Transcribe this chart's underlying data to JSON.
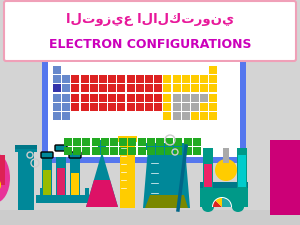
{
  "bg_color": "#d4d4d4",
  "title_arabic": "التوزيع الالكتروني",
  "title_english": "ELECTRON CONFIGURATIONS",
  "title_arabic_color": "#e8189a",
  "title_english_color": "#cc00bb",
  "title_box_edge": "#f0a0b8",
  "periodic_border_color": "#5577ee",
  "periodic_bg": "#ffffff",
  "pt": {
    "blue": "#6688cc",
    "blue_dark": "#3333aa",
    "red": "#dd2222",
    "yellow": "#ffcc00",
    "green": "#22aa22",
    "gray": "#aaaaaa"
  },
  "lab": {
    "teal": "#008899",
    "teal2": "#009988",
    "pink_bg": "#e83399",
    "magenta": "#cc0077",
    "yellow": "#ffcc00",
    "red": "#ee2244",
    "cyan": "#00cccc",
    "lime": "#88aa00",
    "green_tube": "#99cc00",
    "orange": "#ff6600",
    "blue_dark": "#006688",
    "gray_bg": "#d4d4d4",
    "white": "#ffffff"
  }
}
